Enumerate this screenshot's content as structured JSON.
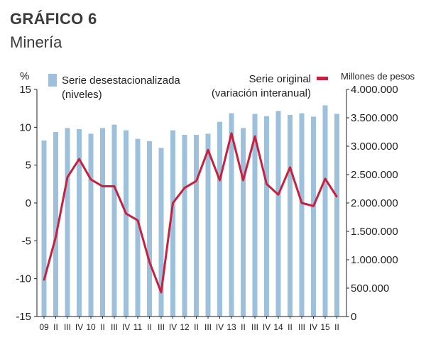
{
  "header": {
    "title": "GRÁFICO 6",
    "subtitle": "Minería"
  },
  "chart_data": {
    "type": "bar",
    "left_axis": {
      "label": "%",
      "ylim": [
        -15,
        15
      ],
      "ticks": [
        "15",
        "10",
        "5",
        "0",
        "-5",
        "-10",
        "-15"
      ],
      "tick_values": [
        15,
        10,
        5,
        0,
        -5,
        -10,
        -15
      ]
    },
    "right_axis": {
      "label": "Millones de pesos",
      "ylim": [
        0,
        4000000
      ],
      "ticks": [
        "4.000.000",
        "3.500.000",
        "3.000.000",
        "2.500.000",
        "2.000.000",
        "1.500.000",
        "1.000.000",
        "500.000",
        "0"
      ],
      "tick_values": [
        4000000,
        3500000,
        3000000,
        2500000,
        2000000,
        1500000,
        1000000,
        500000,
        0
      ]
    },
    "categories": [
      "09",
      "II",
      "III",
      "IV",
      "10",
      "II",
      "III",
      "IV",
      "11",
      "II",
      "III",
      "IV",
      "12",
      "II",
      "III",
      "IV",
      "13",
      "II",
      "III",
      "IV",
      "14",
      "II",
      "III",
      "IV",
      "15",
      "II"
    ],
    "series": [
      {
        "name": "Serie desestacionalizada (niveles)",
        "legend_line1": "Serie desestacionalizada",
        "legend_line2": "(niveles)",
        "type": "bar",
        "axis": "right",
        "color": "#9dc0dc",
        "values": [
          3100000,
          3250000,
          3320000,
          3300000,
          3220000,
          3320000,
          3380000,
          3280000,
          3130000,
          3090000,
          2970000,
          3280000,
          3200000,
          3200000,
          3220000,
          3430000,
          3580000,
          3320000,
          3570000,
          3530000,
          3620000,
          3550000,
          3580000,
          3520000,
          3720000,
          3570000
        ]
      },
      {
        "name": "Serie original (variación interanual)",
        "legend_line1": "Serie original",
        "legend_line2": "(variación interanual)",
        "type": "line",
        "axis": "left",
        "color": "#c8203f",
        "values": [
          -10.2,
          -4.5,
          3.4,
          5.8,
          3.1,
          2.2,
          2.2,
          -1.4,
          -2.3,
          -7.8,
          -11.8,
          0.0,
          2.0,
          2.9,
          7.0,
          3.0,
          9.2,
          3.0,
          8.8,
          2.5,
          1.1,
          4.7,
          0.0,
          -0.4,
          3.2,
          0.8
        ]
      }
    ],
    "grid": false,
    "legend_placement": "top"
  }
}
